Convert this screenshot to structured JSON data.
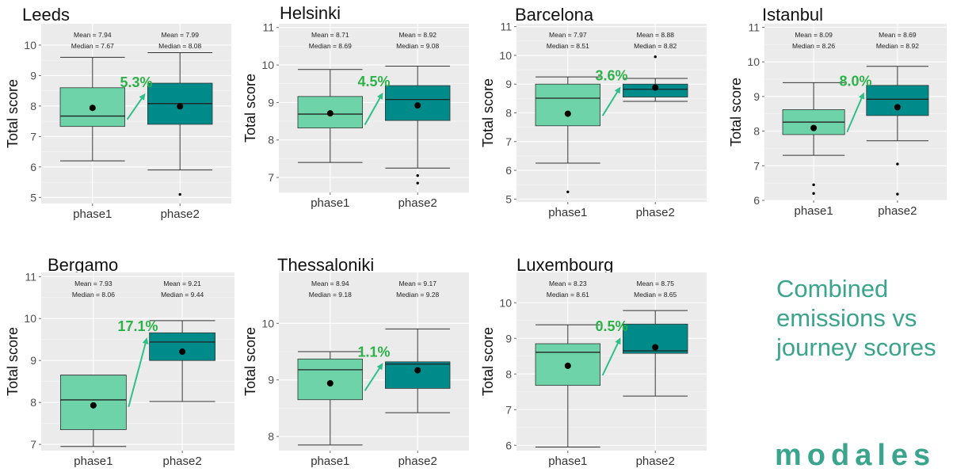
{
  "headline": "Combined emissions vs journey scores",
  "logo_text": "modales",
  "colors": {
    "phase1_fill": "#6ed3a8",
    "phase2_fill": "#008b8b",
    "pct_text": "#2db24a",
    "arrow": "#2fbf88",
    "accent": "#3aa58c",
    "panel_bg": "#ebebeb"
  },
  "chart_data": [
    {
      "type": "box",
      "title": "Leeds",
      "ylabel": "Total score",
      "ylim": [
        4.8,
        10.7
      ],
      "yticks": [
        5,
        6,
        7,
        8,
        9,
        10
      ],
      "categories": [
        "phase1",
        "phase2"
      ],
      "change_label": "5.3%",
      "boxes": [
        {
          "name": "phase1",
          "whisker_low": 6.2,
          "q1": 7.33,
          "median": 7.67,
          "q3": 8.6,
          "whisker_high": 9.6,
          "mean": 7.94,
          "outliers": [],
          "mean_label": "Mean = 7.94",
          "median_label": "Median = 7.67"
        },
        {
          "name": "phase2",
          "whisker_low": 5.9,
          "q1": 7.4,
          "median": 8.08,
          "q3": 8.75,
          "whisker_high": 9.75,
          "mean": 7.99,
          "outliers": [
            5.1
          ],
          "mean_label": "Mean = 7.99",
          "median_label": "Median = 8.08"
        }
      ]
    },
    {
      "type": "box",
      "title": "Helsinki",
      "ylabel": "Total score",
      "ylim": [
        6.6,
        11.1
      ],
      "yticks": [
        7,
        8,
        9,
        10,
        11
      ],
      "categories": [
        "phase1",
        "phase2"
      ],
      "change_label": "4.5%",
      "boxes": [
        {
          "name": "phase1",
          "whisker_low": 7.4,
          "q1": 8.32,
          "median": 8.69,
          "q3": 9.16,
          "whisker_high": 9.88,
          "mean": 8.71,
          "outliers": [],
          "mean_label": "Mean = 8.71",
          "median_label": "Median = 8.69"
        },
        {
          "name": "phase2",
          "whisker_low": 7.25,
          "q1": 8.52,
          "median": 9.08,
          "q3": 9.45,
          "whisker_high": 9.97,
          "mean": 8.92,
          "outliers": [
            7.05,
            6.85
          ],
          "mean_label": "Mean = 8.92",
          "median_label": "Median = 9.08"
        }
      ]
    },
    {
      "type": "box",
      "title": "Barcelona",
      "ylabel": "Total score",
      "ylim": [
        4.9,
        11.1
      ],
      "yticks": [
        5,
        6,
        7,
        8,
        9,
        10,
        11
      ],
      "categories": [
        "phase1",
        "phase2"
      ],
      "change_label": "3.6%",
      "boxes": [
        {
          "name": "phase1",
          "whisker_low": 6.25,
          "q1": 7.55,
          "median": 8.51,
          "q3": 9.0,
          "whisker_high": 9.25,
          "mean": 7.97,
          "outliers": [
            5.25
          ],
          "mean_label": "Mean = 7.97",
          "median_label": "Median = 8.51"
        },
        {
          "name": "phase2",
          "whisker_low": 8.4,
          "q1": 8.55,
          "median": 8.82,
          "q3": 9.0,
          "whisker_high": 9.2,
          "mean": 8.88,
          "outliers": [
            9.95
          ],
          "mean_label": "Mean = 8.88",
          "median_label": "Median = 8.82"
        }
      ]
    },
    {
      "type": "box",
      "title": "Istanbul",
      "ylabel": "Total score",
      "ylim": [
        6.0,
        11.1
      ],
      "yticks": [
        6,
        7,
        8,
        9,
        10,
        11
      ],
      "categories": [
        "phase1",
        "phase2"
      ],
      "change_label": "8.0%",
      "boxes": [
        {
          "name": "phase1",
          "whisker_low": 7.3,
          "q1": 7.9,
          "median": 8.26,
          "q3": 8.62,
          "whisker_high": 9.4,
          "mean": 8.09,
          "outliers": [
            6.45,
            6.2
          ],
          "mean_label": "Mean = 8.09",
          "median_label": "Median = 8.26"
        },
        {
          "name": "phase2",
          "whisker_low": 7.72,
          "q1": 8.45,
          "median": 8.92,
          "q3": 9.32,
          "whisker_high": 9.87,
          "mean": 8.69,
          "outliers": [
            7.05,
            6.18
          ],
          "mean_label": "Mean = 8.69",
          "median_label": "Median = 8.92"
        }
      ]
    },
    {
      "type": "box",
      "title": "Bergamo",
      "ylabel": "Total score",
      "ylim": [
        6.85,
        11.1
      ],
      "yticks": [
        7,
        8,
        9,
        10,
        11
      ],
      "categories": [
        "phase1",
        "phase2"
      ],
      "change_label": "17.1%",
      "boxes": [
        {
          "name": "phase1",
          "whisker_low": 6.95,
          "q1": 7.35,
          "median": 8.06,
          "q3": 8.65,
          "whisker_high": 8.65,
          "mean": 7.93,
          "outliers": [],
          "mean_label": "Mean = 7.93",
          "median_label": "Median = 8.06"
        },
        {
          "name": "phase2",
          "whisker_low": 8.02,
          "q1": 9.0,
          "median": 9.44,
          "q3": 9.66,
          "whisker_high": 9.95,
          "mean": 9.21,
          "outliers": [],
          "mean_label": "Mean = 9.21",
          "median_label": "Median = 9.44"
        }
      ]
    },
    {
      "type": "box",
      "title": "Thessaloniki",
      "ylabel": "Total score",
      "ylim": [
        7.75,
        10.9
      ],
      "yticks": [
        8,
        9,
        10
      ],
      "categories": [
        "phase1",
        "phase2"
      ],
      "change_label": "1.1%",
      "boxes": [
        {
          "name": "phase1",
          "whisker_low": 7.85,
          "q1": 8.65,
          "median": 9.18,
          "q3": 9.37,
          "whisker_high": 9.5,
          "mean": 8.94,
          "outliers": [],
          "mean_label": "Mean = 8.94",
          "median_label": "Median = 9.18"
        },
        {
          "name": "phase2",
          "whisker_low": 8.42,
          "q1": 8.85,
          "median": 9.28,
          "q3": 9.32,
          "whisker_high": 9.9,
          "mean": 9.17,
          "outliers": [],
          "mean_label": "Mean = 9.17",
          "median_label": "Median = 9.28"
        }
      ]
    },
    {
      "type": "box",
      "title": "Luxembourg",
      "ylabel": "Total score",
      "ylim": [
        5.85,
        10.85
      ],
      "yticks": [
        6,
        7,
        8,
        9,
        10
      ],
      "categories": [
        "phase1",
        "phase2"
      ],
      "change_label": "0.5%",
      "boxes": [
        {
          "name": "phase1",
          "whisker_low": 5.95,
          "q1": 7.68,
          "median": 8.61,
          "q3": 8.85,
          "whisker_high": 9.38,
          "mean": 8.23,
          "outliers": [],
          "mean_label": "Mean = 8.23",
          "median_label": "Median = 8.61"
        },
        {
          "name": "phase2",
          "whisker_low": 7.38,
          "q1": 8.58,
          "median": 8.65,
          "q3": 9.4,
          "whisker_high": 9.78,
          "mean": 8.75,
          "outliers": [],
          "mean_label": "Mean = 8.75",
          "median_label": "Median = 8.65"
        }
      ]
    }
  ]
}
